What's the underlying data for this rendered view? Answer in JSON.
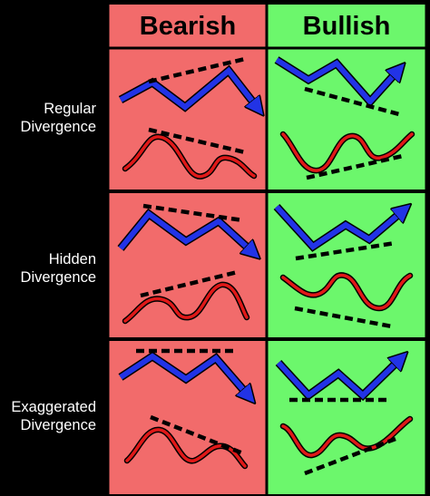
{
  "headers": {
    "bearish": "Bearish",
    "bullish": "Bullish"
  },
  "rows": [
    {
      "line1": "Regular",
      "line2": "Divergence"
    },
    {
      "line1": "Hidden",
      "line2": "Divergence"
    },
    {
      "line1": "Exaggerated",
      "line2": "Divergence"
    }
  ],
  "colors": {
    "background": "#000000",
    "bearish_panel": "#f26b6b",
    "bullish_panel": "#6cf76c",
    "price_line": "#2233e6",
    "oscillator_line": "#e01818",
    "trend_line": "#000000",
    "grid_border": "#000000"
  },
  "icons": {
    "price_line": "blue-price-arrow",
    "oscillator": "red-oscillator-wave",
    "trend_line": "black-dashed-trendline"
  }
}
